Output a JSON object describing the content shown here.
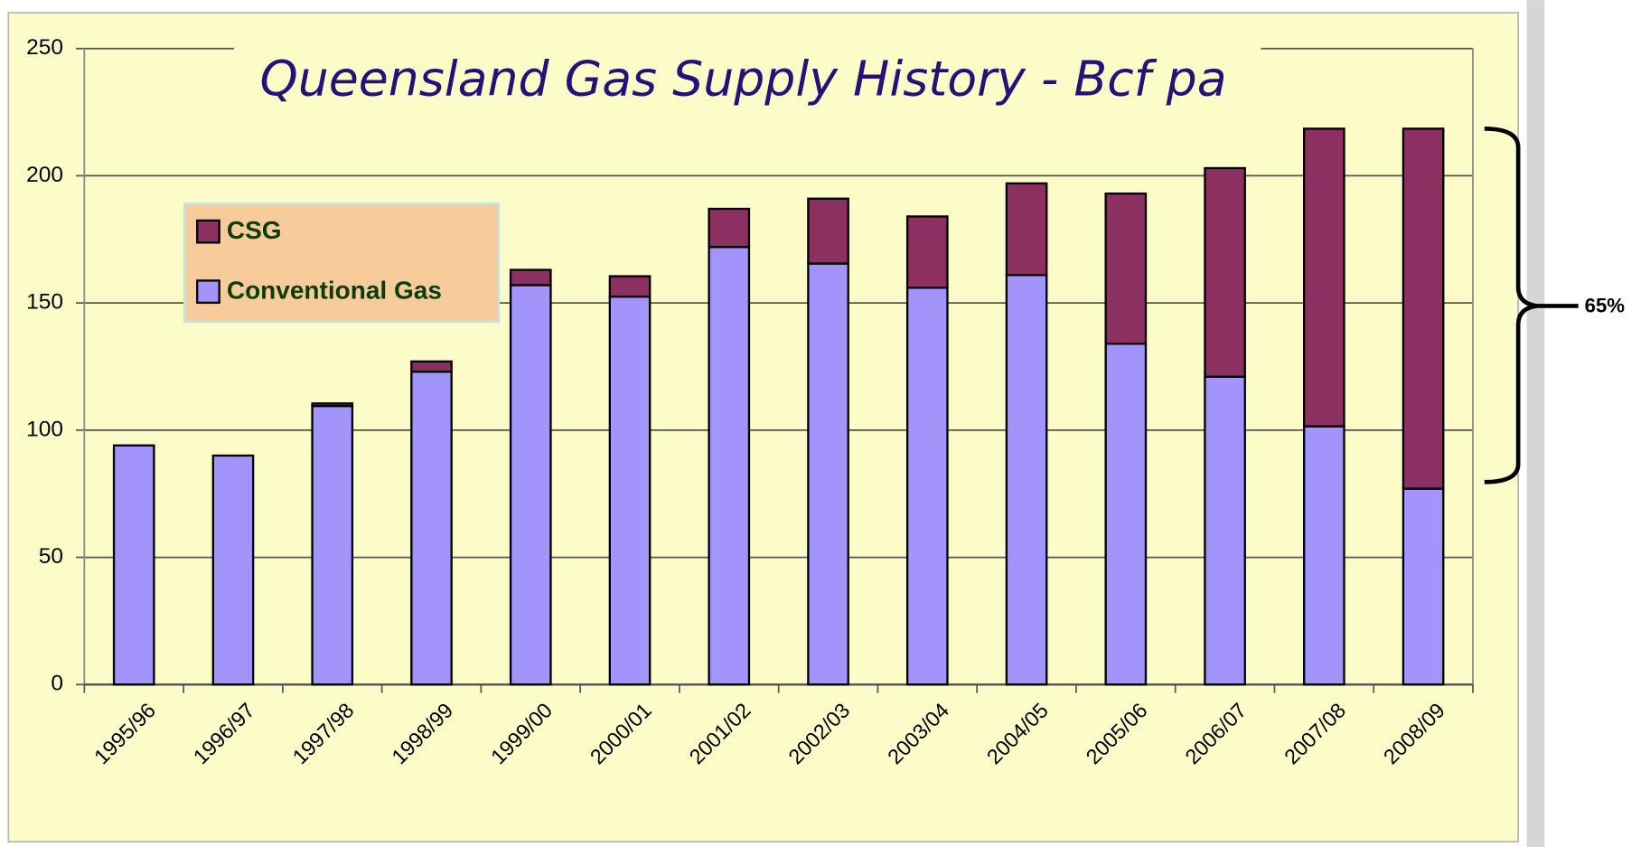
{
  "chart_data": {
    "type": "stacked_bar",
    "title": "Queensland Gas Supply History - Bcf pa",
    "categories": [
      "1995/96",
      "1996/97",
      "1997/98",
      "1998/99",
      "1999/00",
      "2000/01",
      "2001/02",
      "2002/03",
      "2003/04",
      "2004/05",
      "2005/06",
      "2006/07",
      "2007/08",
      "2008/09"
    ],
    "series": [
      {
        "name": "Conventional Gas",
        "color": "#a394fc",
        "values": [
          94,
          90,
          109.5,
          123,
          157,
          152.5,
          172,
          165.5,
          156,
          161,
          134,
          121,
          101.5,
          77
        ]
      },
      {
        "name": "CSG",
        "color": "#8c3062",
        "values": [
          0,
          0,
          1,
          4,
          6,
          8,
          15,
          25.5,
          28,
          36,
          59,
          82,
          117,
          141.5
        ]
      }
    ],
    "ylim": [
      0,
      250
    ],
    "yticks": [
      0,
      50,
      100,
      150,
      200,
      250
    ],
    "grid": true,
    "legend": "upper left",
    "annotation": "65%"
  }
}
